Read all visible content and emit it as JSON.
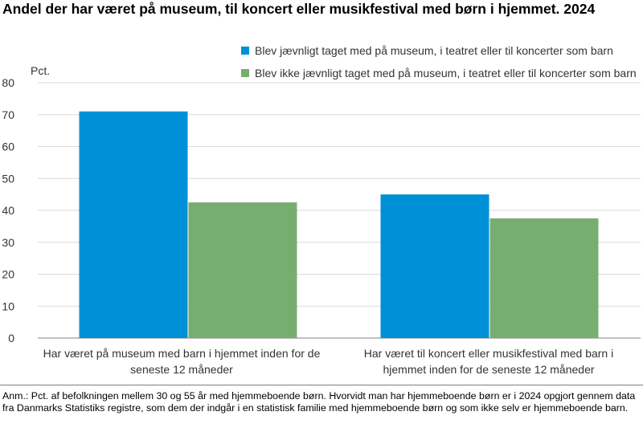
{
  "chart_data": {
    "type": "bar",
    "title": "Andel der har været på museum, til koncert eller musikfestival med børn i hjemmet. 2024",
    "ylabel": "Pct.",
    "ylim": [
      0,
      80
    ],
    "yticks": [
      0,
      10,
      20,
      30,
      40,
      50,
      60,
      70,
      80
    ],
    "grid": true,
    "legend_position": "top-right",
    "categories": [
      "Har været på museum med barn i hjemmet inden for de seneste 12 måneder",
      "Har været til koncert eller musikfestival med barn i hjemmet inden for de seneste 12 måneder"
    ],
    "series": [
      {
        "name": "Blev jævnligt taget med på museum, i teatret eller til koncerter som barn",
        "values": [
          71,
          45
        ],
        "color": "#0090d8"
      },
      {
        "name": "Blev ikke jævnligt taget med på museum, i teatret eller til koncerter som barn",
        "values": [
          42.5,
          37.5
        ],
        "color": "#78ad72"
      }
    ]
  },
  "note": "Anm.: Pct. af befolkningen mellem 30 og 55 år med hjemmeboende børn. Hvorvidt man har hjemmeboende børn er i 2024 opgjort gennem data fra Danmarks Statistiks registre, som dem der indgår i en statistisk familie med hjemmeboende børn og som ikke selv er hjemmeboende barn."
}
